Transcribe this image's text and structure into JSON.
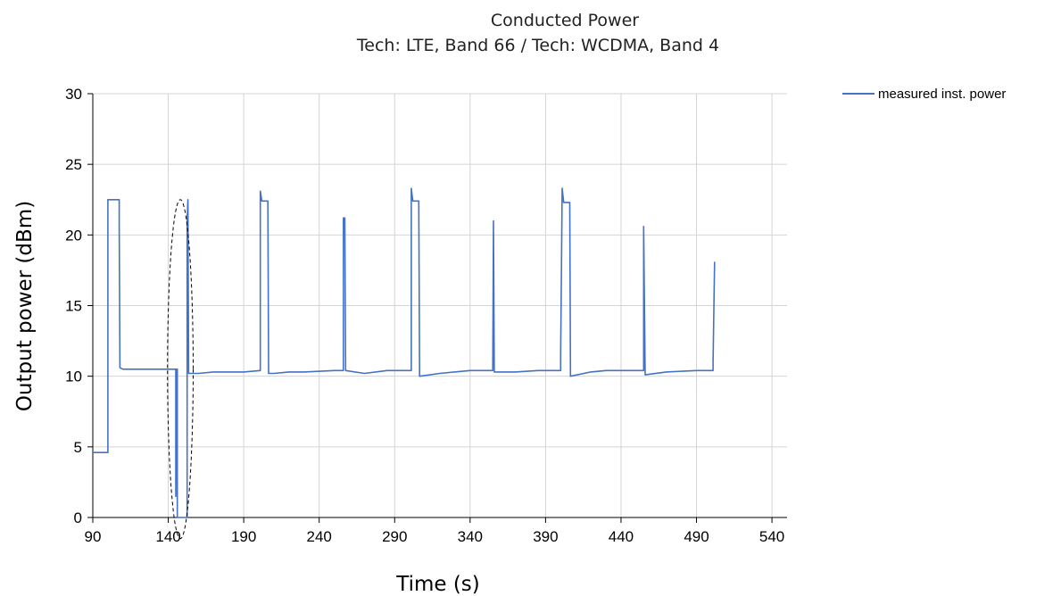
{
  "chart_data": {
    "type": "line",
    "title": "Conducted Power",
    "subtitle": "Tech: LTE, Band 66 / Tech: WCDMA, Band 4",
    "xlabel": "Time (s)",
    "ylabel": "Output power (dBm)",
    "xlim": [
      90,
      550
    ],
    "ylim": [
      0,
      30
    ],
    "x_ticks": [
      90,
      140,
      190,
      240,
      290,
      340,
      390,
      440,
      490,
      540
    ],
    "y_ticks": [
      0,
      5,
      10,
      15,
      20,
      25,
      30
    ],
    "grid": true,
    "legend_position": "top-right",
    "series": [
      {
        "name": "measured inst. power",
        "color": "#4472c4",
        "points": [
          [
            90,
            4.6
          ],
          [
            100,
            4.6
          ],
          [
            100,
            22.5
          ],
          [
            107.5,
            22.5
          ],
          [
            107.5,
            20.5
          ],
          [
            108,
            10.6
          ],
          [
            110,
            10.5
          ],
          [
            125,
            10.5
          ],
          [
            140,
            10.5
          ],
          [
            145,
            10.5
          ],
          [
            145,
            1.5
          ],
          [
            145.3,
            10.5
          ],
          [
            146,
            10.5
          ],
          [
            146,
            0
          ],
          [
            152.5,
            0
          ],
          [
            152.5,
            21
          ],
          [
            153,
            22.5
          ],
          [
            153.5,
            10.2
          ],
          [
            160,
            10.2
          ],
          [
            170,
            10.3
          ],
          [
            180,
            10.3
          ],
          [
            190,
            10.3
          ],
          [
            201,
            10.4
          ],
          [
            201,
            23.1
          ],
          [
            202,
            22.4
          ],
          [
            206,
            22.4
          ],
          [
            206.5,
            10.2
          ],
          [
            210,
            10.2
          ],
          [
            220,
            10.3
          ],
          [
            230,
            10.3
          ],
          [
            250,
            10.4
          ],
          [
            256,
            10.4
          ],
          [
            256,
            21.2
          ],
          [
            257,
            21.2
          ],
          [
            257.5,
            10.4
          ],
          [
            270,
            10.2
          ],
          [
            285,
            10.4
          ],
          [
            301,
            10.4
          ],
          [
            301,
            23.3
          ],
          [
            302,
            22.4
          ],
          [
            306,
            22.4
          ],
          [
            306.5,
            10.0
          ],
          [
            320,
            10.2
          ],
          [
            340,
            10.4
          ],
          [
            355,
            10.4
          ],
          [
            355.5,
            21.0
          ],
          [
            356,
            10.3
          ],
          [
            370,
            10.3
          ],
          [
            385,
            10.4
          ],
          [
            400,
            10.4
          ],
          [
            400,
            11.5
          ],
          [
            401,
            23.3
          ],
          [
            402,
            22.3
          ],
          [
            406,
            22.3
          ],
          [
            406.5,
            10.0
          ],
          [
            420,
            10.3
          ],
          [
            430,
            10.4
          ],
          [
            455,
            10.4
          ],
          [
            455,
            20.6
          ],
          [
            456,
            10.1
          ],
          [
            470,
            10.3
          ],
          [
            490,
            10.4
          ],
          [
            501,
            10.4
          ],
          [
            501,
            11
          ],
          [
            502,
            18.1
          ]
        ]
      }
    ],
    "annotations": [
      {
        "type": "dashed-ellipse",
        "x_center": 148,
        "y_center": 10.5,
        "x_radius": 8.5,
        "y_radius": 12
      }
    ]
  }
}
